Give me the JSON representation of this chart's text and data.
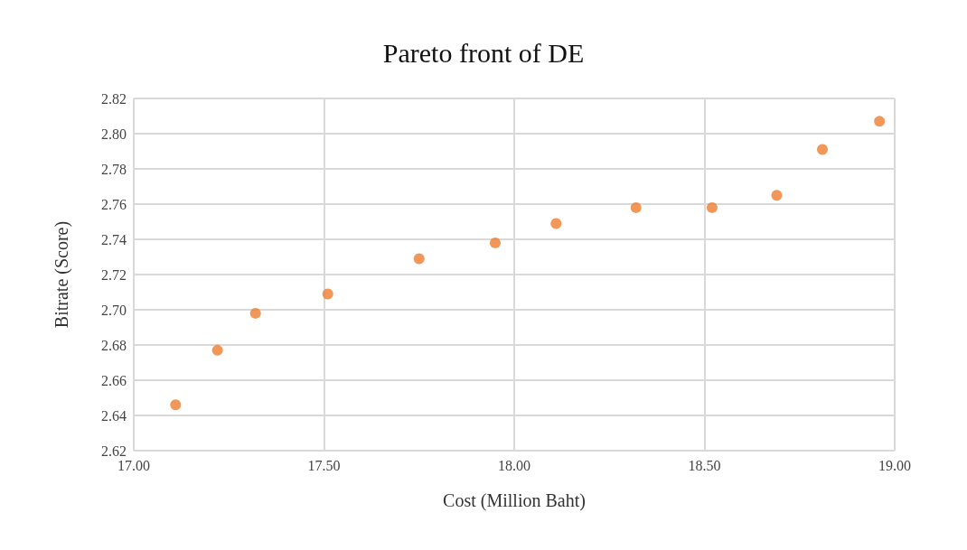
{
  "chart_data": {
    "type": "scatter",
    "title": "Pareto front of DE",
    "xlabel": "Cost (Million Baht)",
    "ylabel": "Bitrate (Score)",
    "series": [
      {
        "color": "#ed7d31",
        "x": [
          17.11,
          17.22,
          17.32,
          17.51,
          17.75,
          17.95,
          18.11,
          18.32,
          18.52,
          18.69,
          18.81,
          18.96
        ],
        "values": [
          2.646,
          2.677,
          2.698,
          2.709,
          2.729,
          2.738,
          2.749,
          2.758,
          2.758,
          2.765,
          2.791,
          2.807
        ]
      }
    ],
    "xlim": [
      17.0,
      19.0
    ],
    "xticks": [
      {
        "value": 17,
        "label": "17.00"
      },
      {
        "value": 17.5,
        "label": "17.50"
      },
      {
        "value": 18,
        "label": "18.00"
      },
      {
        "value": 18.5,
        "label": "18.50"
      },
      {
        "value": 19,
        "label": "19.00"
      }
    ],
    "ylim": [
      2.62,
      2.82
    ],
    "yticks": [
      {
        "value": 2.62,
        "label": "2.62"
      },
      {
        "value": 2.64,
        "label": "2.64"
      },
      {
        "value": 2.66,
        "label": "2.66"
      },
      {
        "value": 2.68,
        "label": "2.68"
      },
      {
        "value": 2.7,
        "label": "2.70"
      },
      {
        "value": 2.72,
        "label": "2.72"
      },
      {
        "value": 2.74,
        "label": "2.74"
      },
      {
        "value": 2.76,
        "label": "2.76"
      },
      {
        "value": 2.78,
        "label": "2.78"
      },
      {
        "value": 2.8,
        "label": "2.80"
      },
      {
        "value": 2.82,
        "label": "2.82"
      }
    ],
    "grid": true,
    "marker": "circle"
  }
}
